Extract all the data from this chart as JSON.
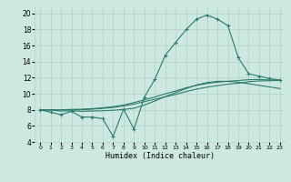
{
  "xlabel": "Humidex (Indice chaleur)",
  "ylabel": "",
  "background_color": "#cce8e0",
  "grid_color": "#b0d0c8",
  "line_color": "#2d7a6e",
  "xlim": [
    -0.5,
    23.5
  ],
  "ylim": [
    4,
    21
  ],
  "xticks": [
    0,
    1,
    2,
    3,
    4,
    5,
    6,
    7,
    8,
    9,
    10,
    11,
    12,
    13,
    14,
    15,
    16,
    17,
    18,
    19,
    20,
    21,
    22,
    23
  ],
  "yticks": [
    4,
    6,
    8,
    10,
    12,
    14,
    16,
    18,
    20
  ],
  "series": {
    "main": {
      "x": [
        0,
        1,
        2,
        3,
        4,
        5,
        6,
        7,
        8,
        9,
        10,
        11,
        12,
        13,
        14,
        15,
        16,
        17,
        18,
        19,
        20,
        21,
        22,
        23
      ],
      "y": [
        8.0,
        7.7,
        7.4,
        7.8,
        7.1,
        7.1,
        6.9,
        4.7,
        8.1,
        5.6,
        9.6,
        11.8,
        14.8,
        16.4,
        18.0,
        19.3,
        19.8,
        19.3,
        18.5,
        14.5,
        12.5,
        12.2,
        11.9,
        11.7
      ]
    },
    "smooth1": {
      "x": [
        0,
        1,
        2,
        3,
        4,
        5,
        6,
        7,
        8,
        9,
        10,
        11,
        12,
        13,
        14,
        15,
        16,
        17,
        18,
        19,
        20,
        21,
        22,
        23
      ],
      "y": [
        8.0,
        7.95,
        7.85,
        7.88,
        7.82,
        7.85,
        7.88,
        7.95,
        8.05,
        8.2,
        8.6,
        9.1,
        9.65,
        10.15,
        10.65,
        11.1,
        11.4,
        11.55,
        11.55,
        11.45,
        11.25,
        11.05,
        10.85,
        10.65
      ]
    },
    "smooth2": {
      "x": [
        0,
        1,
        2,
        3,
        4,
        5,
        6,
        7,
        8,
        9,
        10,
        11,
        12,
        13,
        14,
        15,
        16,
        17,
        18,
        19,
        20,
        21,
        22,
        23
      ],
      "y": [
        8.0,
        8.0,
        8.0,
        8.05,
        8.08,
        8.15,
        8.25,
        8.4,
        8.6,
        8.9,
        9.25,
        9.6,
        10.0,
        10.35,
        10.75,
        11.05,
        11.28,
        11.45,
        11.55,
        11.65,
        11.75,
        11.78,
        11.72,
        11.68
      ]
    },
    "smooth3": {
      "x": [
        0,
        1,
        2,
        3,
        4,
        5,
        6,
        7,
        8,
        9,
        10,
        11,
        12,
        13,
        14,
        15,
        16,
        17,
        18,
        19,
        20,
        21,
        22,
        23
      ],
      "y": [
        8.0,
        8.0,
        8.0,
        8.0,
        8.02,
        8.08,
        8.18,
        8.3,
        8.48,
        8.72,
        9.02,
        9.32,
        9.62,
        9.92,
        10.28,
        10.58,
        10.82,
        11.02,
        11.2,
        11.32,
        11.5,
        11.6,
        11.62,
        11.68
      ]
    }
  }
}
